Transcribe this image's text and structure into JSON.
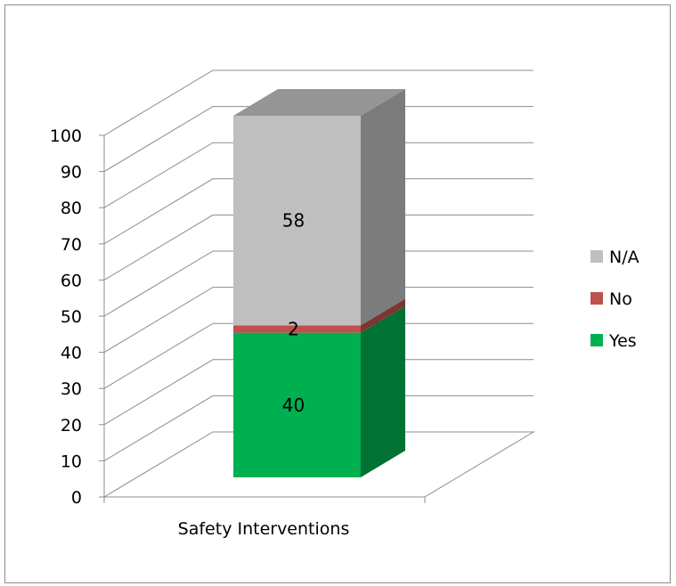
{
  "chart_data": {
    "type": "bar",
    "stacked": true,
    "three_d": true,
    "categories": [
      "Safety Interventions"
    ],
    "series": [
      {
        "name": "Yes",
        "values": [
          40
        ],
        "color": "#00b050"
      },
      {
        "name": "No",
        "values": [
          2
        ],
        "color": "#c0504d"
      },
      {
        "name": "N/A",
        "values": [
          58
        ],
        "color": "#bfbfbf"
      }
    ],
    "data_labels": [
      "40",
      "2",
      "58"
    ],
    "yticks": [
      "0",
      "10",
      "20",
      "30",
      "40",
      "50",
      "60",
      "70",
      "80",
      "90",
      "100"
    ],
    "ylim": [
      0,
      100
    ],
    "grid": true,
    "legend_position": "right",
    "legend_order": [
      "N/A",
      "No",
      "Yes"
    ]
  }
}
